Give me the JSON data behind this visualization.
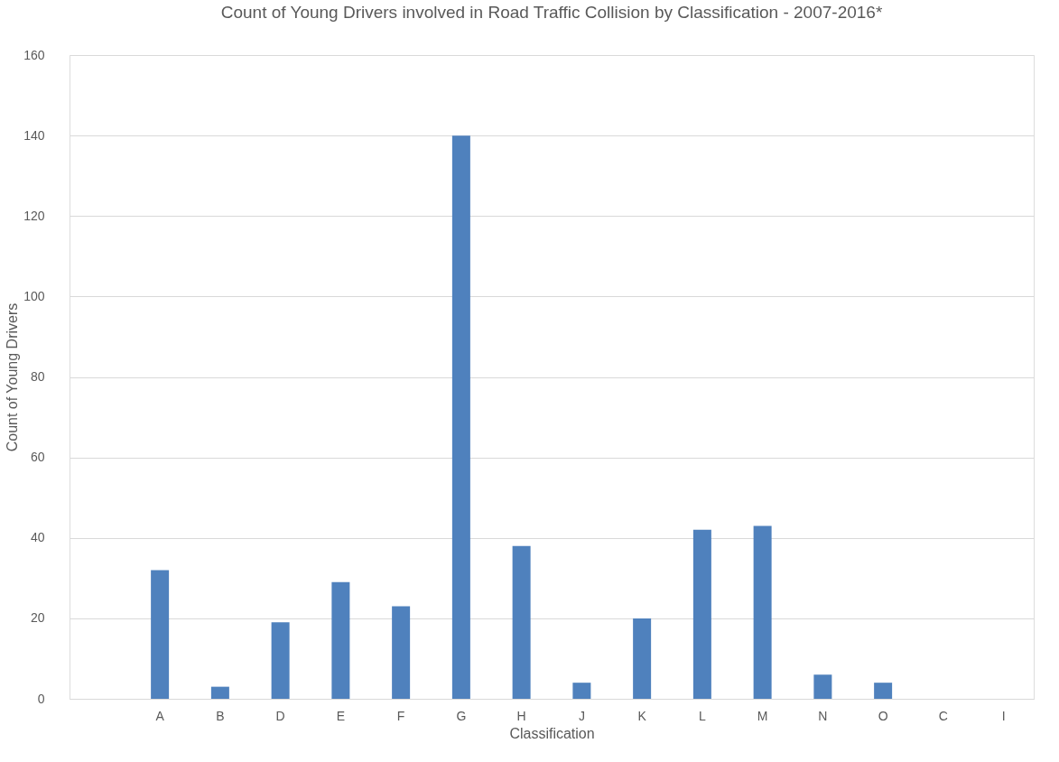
{
  "chart_data": {
    "type": "bar",
    "title": "Count of Young Drivers involved in Road Traffic Collision by Classification - 2007-2016*",
    "xlabel": "Classification",
    "ylabel": "Count of Young Drivers",
    "categories": [
      null,
      "A",
      "B",
      "D",
      "E",
      "F",
      "G",
      "H",
      "J",
      "K",
      "L",
      "M",
      "N",
      "O",
      "C",
      "I"
    ],
    "values": [
      null,
      32,
      3,
      19,
      29,
      23,
      140,
      38,
      4,
      20,
      42,
      43,
      6,
      4,
      0,
      0
    ],
    "color": "#4f81bd",
    "ylim": [
      0,
      160
    ],
    "yticks": [
      0,
      20,
      40,
      60,
      80,
      100,
      120,
      140,
      160
    ],
    "grid": "y"
  }
}
